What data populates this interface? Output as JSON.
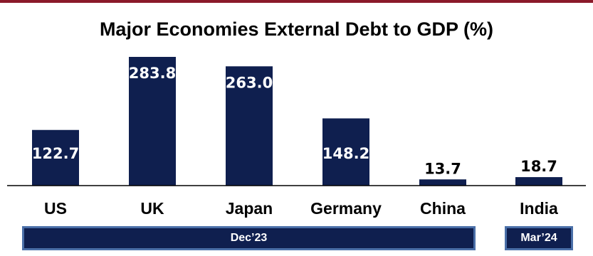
{
  "chart_data": {
    "type": "bar",
    "title": "Major Economies External Debt to GDP (%)",
    "xlabel": "",
    "ylabel": "",
    "categories": [
      "US",
      "UK",
      "Japan",
      "Germany",
      "China",
      "India"
    ],
    "values": [
      122.7,
      283.8,
      263.0,
      148.2,
      13.7,
      18.7
    ],
    "value_labels": [
      "122.7",
      "283.8",
      "263.0",
      "148.2",
      "13.7",
      "18.7"
    ],
    "ylim": [
      0,
      300
    ],
    "grid": false,
    "legend": "none",
    "bar_color": "#0f1f4f",
    "periods": [
      {
        "label": "Dec’23",
        "categories": [
          "US",
          "UK",
          "Japan",
          "Germany",
          "China"
        ]
      },
      {
        "label": "Mar’24",
        "categories": [
          "India"
        ]
      }
    ]
  },
  "colors": {
    "accent_rule": "#8b1a2a",
    "bar": "#0f1f4f",
    "period_border": "#4a6fa8"
  }
}
